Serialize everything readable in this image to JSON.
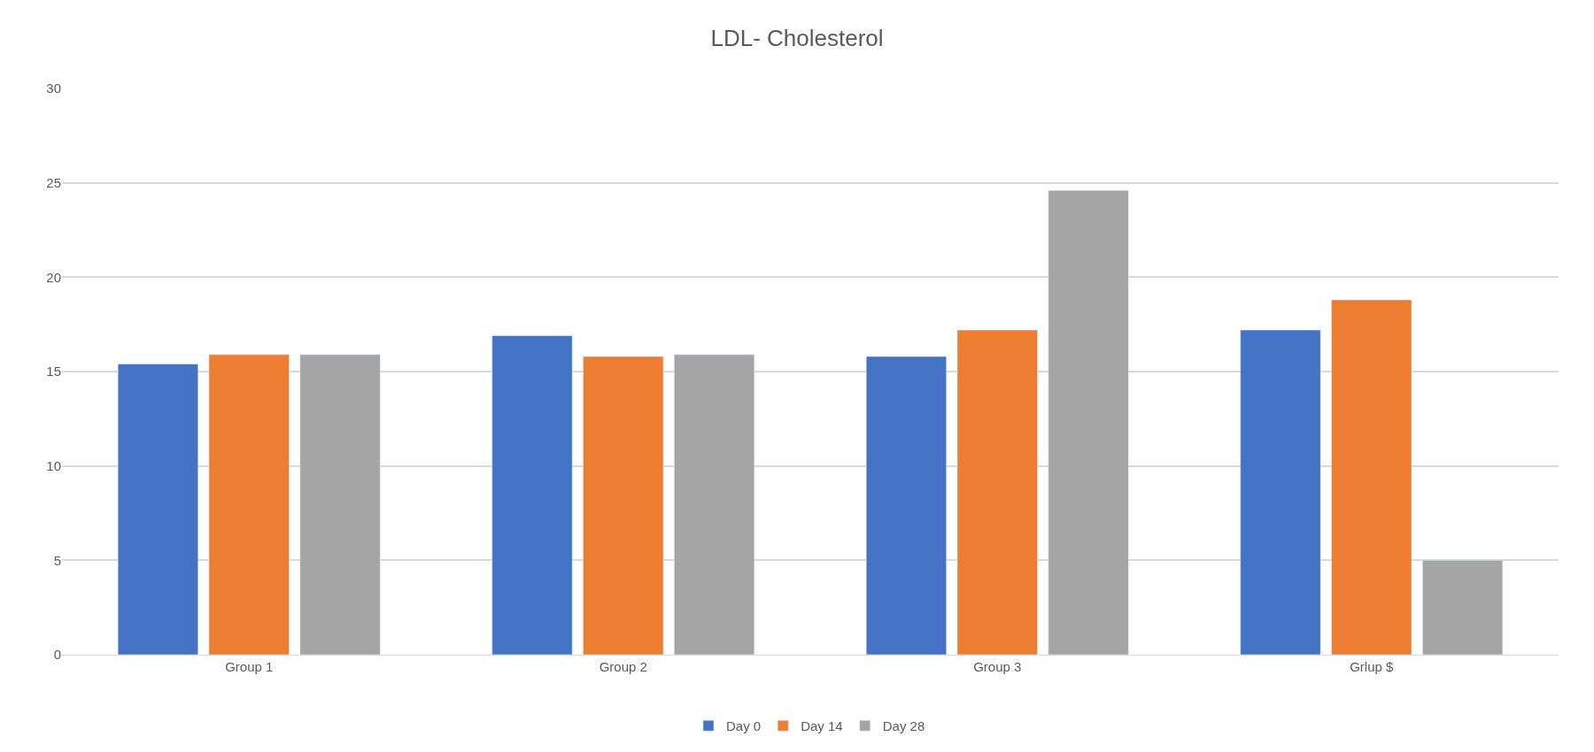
{
  "chart_data": {
    "type": "bar",
    "title": "LDL- Cholesterol",
    "categories": [
      "Group 1",
      "Group 2",
      "Group 3",
      "Grlup $"
    ],
    "series": [
      {
        "name": "Day 0",
        "color": "#4472c4",
        "values": [
          15.4,
          16.9,
          15.8,
          17.2
        ]
      },
      {
        "name": "Day 14",
        "color": "#ed7d31",
        "values": [
          15.9,
          15.8,
          17.2,
          18.8
        ]
      },
      {
        "name": "Day 28",
        "color": "#a5a5a5",
        "values": [
          15.9,
          15.9,
          24.6,
          5.0
        ]
      }
    ],
    "ylim": [
      0,
      30
    ],
    "yticks": [
      0,
      5,
      10,
      15,
      20,
      25,
      30
    ],
    "grid": "y",
    "legend": "bottom"
  }
}
